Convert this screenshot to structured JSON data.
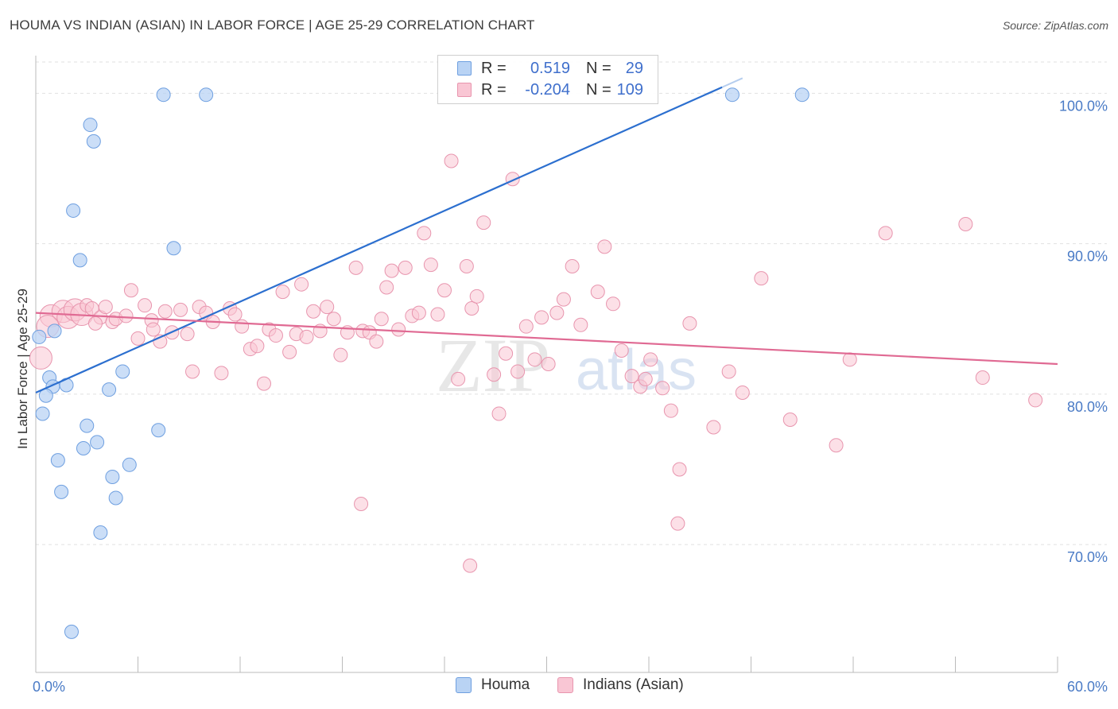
{
  "title": "HOUMA VS INDIAN (ASIAN) IN LABOR FORCE | AGE 25-29 CORRELATION CHART",
  "source": "Source: ZipAtlas.com",
  "watermark": {
    "zip": "ZIP",
    "atlas": "atlas"
  },
  "legend": {
    "rows": [
      {
        "r_label": "R =",
        "r_value": "0.519",
        "n_label": "N =",
        "n_value": "29"
      },
      {
        "r_label": "R =",
        "r_value": "-0.204",
        "n_label": "N =",
        "n_value": "109"
      }
    ]
  },
  "bottom_legend": [
    "Houma",
    "Indians (Asian)"
  ],
  "colors": {
    "houma_fill": "#b9d3f4",
    "houma_stroke": "#6e9fe0",
    "houma_line": "#2c6fcf",
    "indian_fill": "#f9c6d4",
    "indian_stroke": "#e895ae",
    "indian_line": "#e06a93",
    "tick_text": "#4a7bc6",
    "grid": "#e1e1e1"
  },
  "chart_data": {
    "type": "scatter",
    "title": "HOUMA VS INDIAN (ASIAN) IN LABOR FORCE | AGE 25-29 CORRELATION CHART",
    "xlabel": "",
    "ylabel": "In Labor Force | Age 25-29",
    "xlim": [
      0,
      60
    ],
    "ylim": [
      61.5,
      102.5
    ],
    "x_tick_labels": [
      "0.0%",
      "60.0%"
    ],
    "y_ticks": [
      70,
      80,
      90,
      100
    ],
    "y_tick_labels": [
      "70.0%",
      "80.0%",
      "90.0%",
      "100.0%"
    ],
    "series": [
      {
        "name": "Houma",
        "r": 0.519,
        "n": 29,
        "trend": {
          "x": [
            0,
            40.3
          ],
          "y": [
            80.1,
            100.4
          ]
        },
        "points": [
          [
            0.2,
            83.8,
            0
          ],
          [
            1.1,
            84.2,
            0
          ],
          [
            0.8,
            81.1,
            0
          ],
          [
            1.0,
            80.5,
            0
          ],
          [
            1.8,
            80.6,
            0
          ],
          [
            0.6,
            79.9,
            0
          ],
          [
            0.4,
            78.7,
            0
          ],
          [
            1.3,
            75.6,
            0
          ],
          [
            1.5,
            73.5,
            0
          ],
          [
            2.2,
            92.2,
            0
          ],
          [
            2.6,
            88.9,
            0
          ],
          [
            3.2,
            97.9,
            0
          ],
          [
            3.4,
            96.8,
            0
          ],
          [
            3.0,
            77.9,
            0
          ],
          [
            2.8,
            76.4,
            0
          ],
          [
            3.6,
            76.8,
            0
          ],
          [
            4.3,
            80.3,
            0
          ],
          [
            4.5,
            74.5,
            0
          ],
          [
            4.7,
            73.1,
            0
          ],
          [
            5.1,
            81.5,
            0
          ],
          [
            5.5,
            75.3,
            0
          ],
          [
            3.8,
            70.8,
            0
          ],
          [
            2.1,
            64.2,
            0
          ],
          [
            7.5,
            99.9,
            0
          ],
          [
            10.0,
            99.9,
            0
          ],
          [
            7.2,
            77.6,
            0
          ],
          [
            8.1,
            89.7,
            0
          ],
          [
            40.9,
            99.9,
            0
          ],
          [
            45.0,
            99.9,
            0
          ]
        ]
      },
      {
        "name": "Indians (Asian)",
        "r": -0.204,
        "n": 109,
        "trend": {
          "x": [
            0,
            60
          ],
          "y": [
            85.4,
            82.0
          ]
        },
        "points": [
          [
            0.3,
            82.4,
            1
          ],
          [
            0.9,
            85.2,
            1
          ],
          [
            1.6,
            85.5,
            1
          ],
          [
            0.7,
            84.5,
            1
          ],
          [
            1.9,
            85.1,
            1
          ],
          [
            2.3,
            85.6,
            1
          ],
          [
            2.7,
            85.3,
            1
          ],
          [
            3.0,
            85.9,
            0
          ],
          [
            3.3,
            85.7,
            0
          ],
          [
            3.8,
            85.1,
            0
          ],
          [
            4.1,
            85.8,
            0
          ],
          [
            4.5,
            84.8,
            0
          ],
          [
            4.7,
            85.0,
            0
          ],
          [
            5.3,
            85.2,
            0
          ],
          [
            5.6,
            86.9,
            0
          ],
          [
            6.0,
            83.7,
            0
          ],
          [
            6.4,
            85.9,
            0
          ],
          [
            6.8,
            84.9,
            0
          ],
          [
            7.3,
            83.5,
            0
          ],
          [
            7.6,
            85.5,
            0
          ],
          [
            8.0,
            84.1,
            0
          ],
          [
            8.5,
            85.6,
            0
          ],
          [
            8.9,
            84.0,
            0
          ],
          [
            9.2,
            81.5,
            0
          ],
          [
            9.6,
            85.8,
            0
          ],
          [
            10.0,
            85.4,
            0
          ],
          [
            10.4,
            84.8,
            0
          ],
          [
            10.9,
            81.4,
            0
          ],
          [
            11.4,
            85.7,
            0
          ],
          [
            11.7,
            85.3,
            0
          ],
          [
            12.1,
            84.5,
            0
          ],
          [
            12.6,
            83.0,
            0
          ],
          [
            13.0,
            83.2,
            0
          ],
          [
            13.4,
            80.7,
            0
          ],
          [
            13.7,
            84.3,
            0
          ],
          [
            14.1,
            83.9,
            0
          ],
          [
            14.5,
            86.8,
            0
          ],
          [
            14.9,
            82.8,
            0
          ],
          [
            15.3,
            84.0,
            0
          ],
          [
            15.6,
            87.3,
            0
          ],
          [
            15.9,
            83.8,
            0
          ],
          [
            16.3,
            85.5,
            0
          ],
          [
            16.7,
            84.2,
            0
          ],
          [
            17.1,
            85.8,
            0
          ],
          [
            17.5,
            85.0,
            0
          ],
          [
            17.9,
            82.6,
            0
          ],
          [
            18.3,
            84.1,
            0
          ],
          [
            18.8,
            88.4,
            0
          ],
          [
            19.2,
            84.2,
            0
          ],
          [
            19.6,
            84.1,
            0
          ],
          [
            20.0,
            83.5,
            0
          ],
          [
            20.3,
            85.0,
            0
          ],
          [
            20.6,
            87.1,
            0
          ],
          [
            20.9,
            88.2,
            0
          ],
          [
            21.3,
            84.3,
            0
          ],
          [
            21.7,
            88.4,
            0
          ],
          [
            22.1,
            85.2,
            0
          ],
          [
            22.5,
            85.4,
            0
          ],
          [
            22.8,
            90.7,
            0
          ],
          [
            23.2,
            88.6,
            0
          ],
          [
            23.6,
            85.3,
            0
          ],
          [
            24.0,
            86.9,
            0
          ],
          [
            24.4,
            95.5,
            0
          ],
          [
            24.8,
            81.0,
            0
          ],
          [
            25.3,
            88.5,
            0
          ],
          [
            25.6,
            85.7,
            0
          ],
          [
            25.9,
            86.5,
            0
          ],
          [
            26.3,
            91.4,
            0
          ],
          [
            26.9,
            81.3,
            0
          ],
          [
            27.2,
            78.7,
            0
          ],
          [
            27.6,
            82.7,
            0
          ],
          [
            28.0,
            94.3,
            0
          ],
          [
            28.3,
            81.5,
            0
          ],
          [
            28.8,
            84.5,
            0
          ],
          [
            29.3,
            82.3,
            0
          ],
          [
            29.7,
            85.1,
            0
          ],
          [
            30.1,
            82.0,
            0
          ],
          [
            30.6,
            85.4,
            0
          ],
          [
            31.0,
            86.3,
            0
          ],
          [
            31.5,
            88.5,
            0
          ],
          [
            32.0,
            84.6,
            0
          ],
          [
            33.0,
            86.8,
            0
          ],
          [
            33.4,
            89.8,
            0
          ],
          [
            33.9,
            86.0,
            0
          ],
          [
            34.4,
            82.9,
            0
          ],
          [
            35.0,
            81.2,
            0
          ],
          [
            35.5,
            80.5,
            0
          ],
          [
            35.8,
            81.0,
            0
          ],
          [
            36.1,
            82.3,
            0
          ],
          [
            36.8,
            80.4,
            0
          ],
          [
            37.3,
            78.9,
            0
          ],
          [
            37.7,
            71.4,
            0
          ],
          [
            38.4,
            84.7,
            0
          ],
          [
            39.8,
            77.8,
            0
          ],
          [
            40.7,
            81.5,
            0
          ],
          [
            41.5,
            80.1,
            0
          ],
          [
            42.6,
            87.7,
            0
          ],
          [
            44.3,
            78.3,
            0
          ],
          [
            47.0,
            76.6,
            0
          ],
          [
            47.8,
            82.3,
            0
          ],
          [
            49.9,
            90.7,
            0
          ],
          [
            54.6,
            91.3,
            0
          ],
          [
            55.6,
            81.1,
            0
          ],
          [
            58.7,
            79.6,
            0
          ],
          [
            19.1,
            72.7,
            0
          ],
          [
            25.5,
            68.6,
            0
          ],
          [
            37.8,
            75.0,
            0
          ],
          [
            6.9,
            84.3,
            0
          ],
          [
            3.5,
            84.7,
            0
          ]
        ]
      }
    ]
  }
}
